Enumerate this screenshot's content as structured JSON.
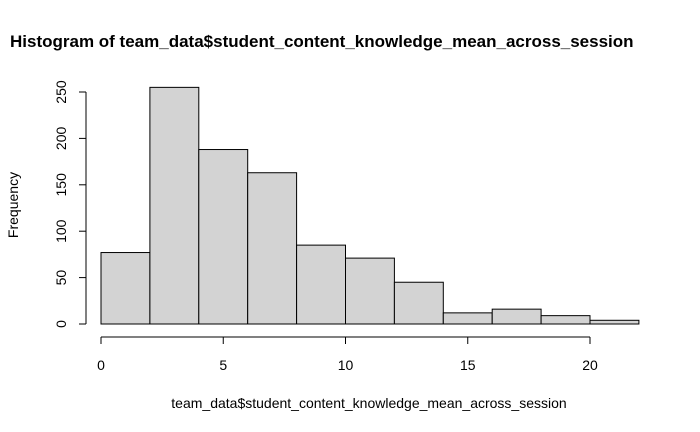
{
  "chart_data": {
    "type": "bar",
    "title": "Histogram of team_data$student_content_knowledge_mean_across_session",
    "xlabel": "team_data$student_content_knowledge_mean_across_session",
    "ylabel": "Frequency",
    "bin_edges": [
      0,
      2,
      4,
      6,
      8,
      10,
      12,
      14,
      16,
      18,
      20,
      22
    ],
    "values": [
      77,
      255,
      188,
      163,
      85,
      71,
      45,
      12,
      16,
      9,
      4
    ],
    "x_ticks": [
      0,
      5,
      10,
      15,
      20
    ],
    "y_ticks": [
      0,
      50,
      100,
      150,
      200,
      250
    ],
    "xlim": [
      0,
      22
    ],
    "ylim": [
      0,
      255
    ],
    "grid": false,
    "colors": {
      "bar_fill": "#d3d3d3",
      "bar_stroke": "#000000"
    }
  }
}
